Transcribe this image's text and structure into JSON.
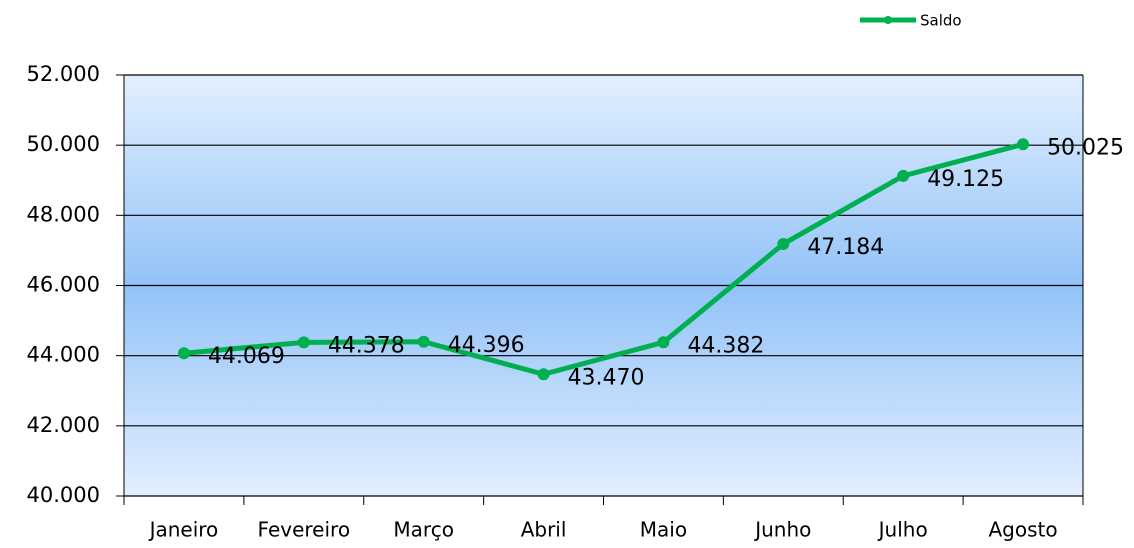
{
  "chart_data": {
    "type": "line",
    "categories": [
      "Janeiro",
      "Fevereiro",
      "Março",
      "Abril",
      "Maio",
      "Junho",
      "Julho",
      "Agosto"
    ],
    "series": [
      {
        "name": "Saldo",
        "color": "#00b050",
        "values": [
          44069,
          44378,
          44396,
          43470,
          44382,
          47184,
          49125,
          50025
        ],
        "value_labels": [
          "44.069",
          "44.378",
          "44.396",
          "43.470",
          "44.382",
          "47.184",
          "49.125",
          "50.025"
        ]
      }
    ],
    "ylim": [
      40000,
      52000
    ],
    "yticks": [
      {
        "value": 40000,
        "label": "40.000"
      },
      {
        "value": 42000,
        "label": "42.000"
      },
      {
        "value": 44000,
        "label": "44.000"
      },
      {
        "value": 46000,
        "label": "46.000"
      },
      {
        "value": 48000,
        "label": "48.000"
      },
      {
        "value": 50000,
        "label": "50.000"
      },
      {
        "value": 52000,
        "label": "52.000"
      }
    ],
    "grid": true,
    "legend": "top-right"
  }
}
